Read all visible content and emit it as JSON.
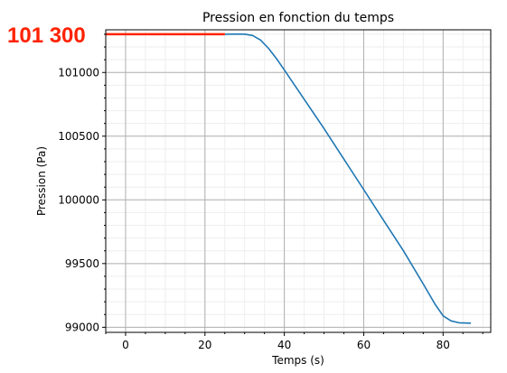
{
  "chart_data": {
    "type": "line",
    "title": "Pression en fonction du temps",
    "xlabel": "Temps (s)",
    "ylabel": "Pression (Pa)",
    "xlim": [
      -5,
      92
    ],
    "ylim": [
      98960,
      101335
    ],
    "x_ticks": [
      0,
      20,
      40,
      60,
      80
    ],
    "y_ticks": [
      99000,
      99500,
      100000,
      100500,
      101000
    ],
    "grid": true,
    "minor_grid": true,
    "series": [
      {
        "color": "#1f77b4",
        "points": [
          [
            25,
            101300
          ],
          [
            28,
            101302
          ],
          [
            30,
            101301
          ],
          [
            32,
            101290
          ],
          [
            34,
            101255
          ],
          [
            36,
            101190
          ],
          [
            38,
            101110
          ],
          [
            40,
            101020
          ],
          [
            45,
            100790
          ],
          [
            50,
            100560
          ],
          [
            55,
            100320
          ],
          [
            60,
            100080
          ],
          [
            65,
            99840
          ],
          [
            70,
            99600
          ],
          [
            75,
            99340
          ],
          [
            78,
            99180
          ],
          [
            80,
            99090
          ],
          [
            82,
            99050
          ],
          [
            84,
            99035
          ],
          [
            87,
            99032
          ]
        ]
      },
      {
        "color": "#ff2200",
        "points": [
          [
            -5,
            101300
          ],
          [
            25,
            101300
          ]
        ]
      }
    ],
    "annotation": {
      "text": "101 300",
      "color": "#ff2200",
      "value": 101300
    }
  }
}
